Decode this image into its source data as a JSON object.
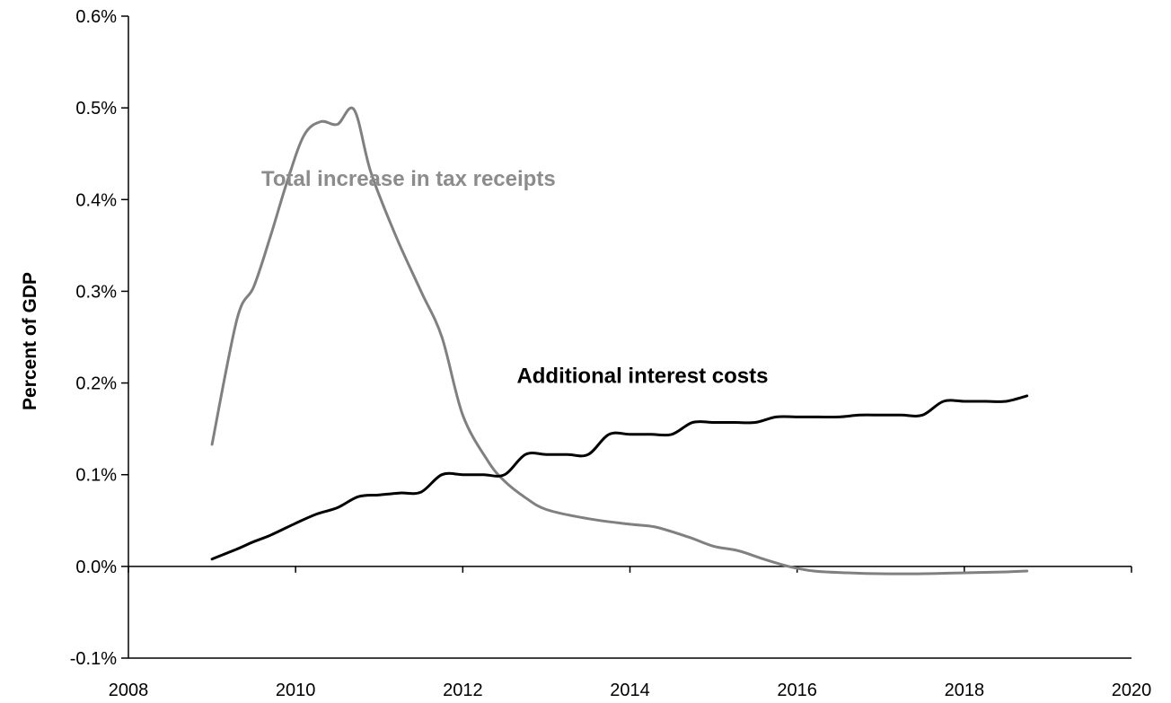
{
  "chart_data": {
    "type": "line",
    "title": "",
    "xlabel": "",
    "ylabel": "Percent of GDP",
    "xlim": [
      2008,
      2020
    ],
    "ylim": [
      -0.1,
      0.6
    ],
    "x_ticks": [
      2008,
      2010,
      2012,
      2014,
      2016,
      2018,
      2020
    ],
    "x_tick_labels": [
      "2008",
      "2010",
      "2012",
      "2014",
      "2016",
      "2018",
      "2020"
    ],
    "y_ticks": [
      -0.1,
      0.0,
      0.1,
      0.2,
      0.3,
      0.4,
      0.5,
      0.6
    ],
    "y_tick_labels": [
      "-0.1%",
      "0.0%",
      "0.1%",
      "0.2%",
      "0.3%",
      "0.4%",
      "0.5%",
      "0.6%"
    ],
    "grid": false,
    "zero_line": true,
    "series": [
      {
        "name": "Total increase in tax receipts",
        "color": "#808080",
        "x": [
          2009.0,
          2009.3,
          2009.5,
          2009.7,
          2009.9,
          2010.1,
          2010.3,
          2010.5,
          2010.7,
          2010.9,
          2011.2,
          2011.5,
          2011.75,
          2012.0,
          2012.3,
          2012.5,
          2012.75,
          2013.0,
          2013.5,
          2014.0,
          2014.3,
          2014.7,
          2015.0,
          2015.3,
          2015.6,
          2015.9,
          2016.2,
          2016.6,
          2017.0,
          2017.5,
          2018.0,
          2018.5,
          2018.75
        ],
        "y": [
          0.133,
          0.27,
          0.305,
          0.36,
          0.42,
          0.47,
          0.485,
          0.482,
          0.498,
          0.43,
          0.36,
          0.3,
          0.25,
          0.165,
          0.115,
          0.093,
          0.075,
          0.062,
          0.052,
          0.046,
          0.043,
          0.032,
          0.022,
          0.017,
          0.008,
          0.0,
          -0.005,
          -0.007,
          -0.008,
          -0.008,
          -0.007,
          -0.006,
          -0.005
        ]
      },
      {
        "name": "Additional interest costs",
        "color": "#000000",
        "x": [
          2009.0,
          2009.3,
          2009.5,
          2009.7,
          2010.0,
          2010.25,
          2010.5,
          2010.75,
          2011.0,
          2011.25,
          2011.5,
          2011.75,
          2012.0,
          2012.25,
          2012.5,
          2012.75,
          2013.0,
          2013.25,
          2013.5,
          2013.75,
          2014.0,
          2014.25,
          2014.5,
          2014.75,
          2015.0,
          2015.25,
          2015.5,
          2015.75,
          2016.0,
          2016.25,
          2016.5,
          2016.75,
          2017.0,
          2017.25,
          2017.5,
          2017.75,
          2018.0,
          2018.25,
          2018.5,
          2018.75
        ],
        "y": [
          0.008,
          0.019,
          0.027,
          0.034,
          0.047,
          0.057,
          0.064,
          0.076,
          0.078,
          0.08,
          0.081,
          0.1,
          0.1,
          0.1,
          0.1,
          0.122,
          0.122,
          0.122,
          0.122,
          0.144,
          0.144,
          0.144,
          0.144,
          0.157,
          0.157,
          0.157,
          0.157,
          0.163,
          0.163,
          0.163,
          0.163,
          0.165,
          0.165,
          0.165,
          0.165,
          0.18,
          0.18,
          0.18,
          0.18,
          0.186
        ]
      }
    ],
    "annotations": [
      {
        "text": "Total increase in tax receipts",
        "series": 0,
        "x": 2011.35,
        "y": 0.415,
        "color": "#8c8c8c"
      },
      {
        "text": "Additional interest costs",
        "series": 1,
        "x": 2014.15,
        "y": 0.2,
        "color": "#000000"
      }
    ]
  }
}
